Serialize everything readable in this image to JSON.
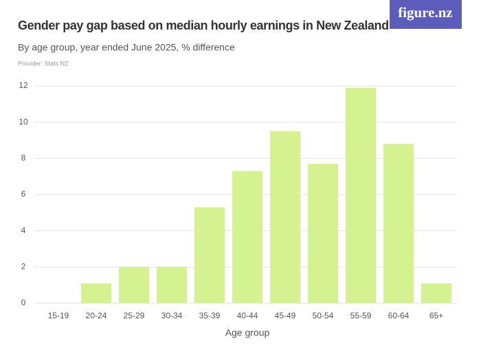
{
  "brand": "figure.nz",
  "chart_data": {
    "type": "bar",
    "title": "Gender pay gap based on median hourly earnings in New Zealand",
    "subtitle": "By age group, year ended June 2025, % difference",
    "provider": "Provider: Stats NZ",
    "x_label": "Age group",
    "categories": [
      "15-19",
      "20-24",
      "25-29",
      "30-34",
      "35-39",
      "40-44",
      "45-49",
      "50-54",
      "55-59",
      "60-64",
      "65+"
    ],
    "values": [
      0,
      1.1,
      2.0,
      2.0,
      5.3,
      7.3,
      9.5,
      7.7,
      11.9,
      8.8,
      1.1
    ],
    "color": "#d5f290",
    "ylim": [
      0,
      12
    ],
    "yticks": [
      0,
      2,
      4,
      6,
      8,
      10,
      12
    ],
    "grid": true
  }
}
